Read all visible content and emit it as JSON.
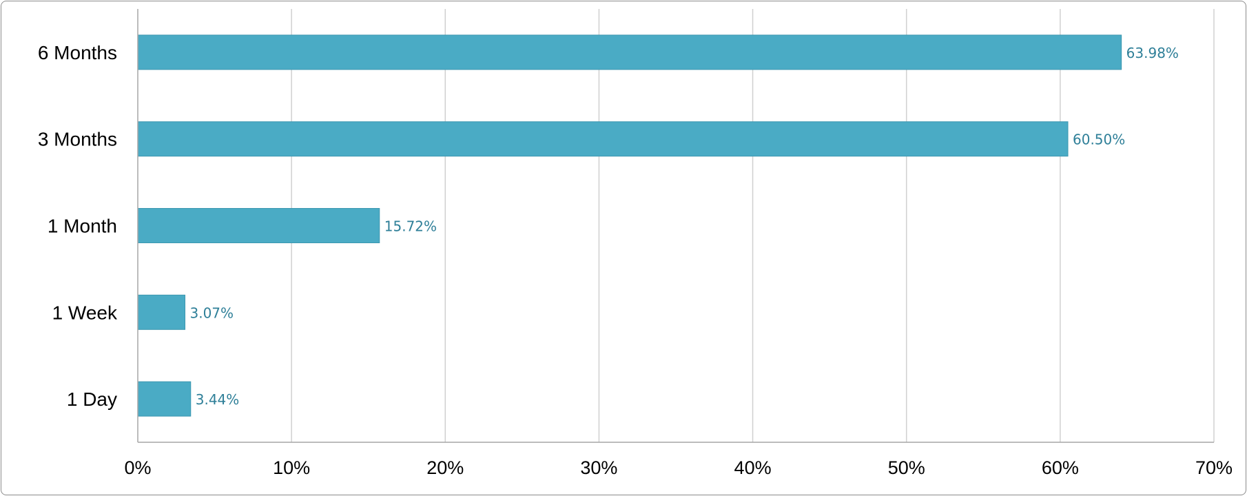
{
  "chart_data": {
    "type": "bar",
    "orientation": "horizontal",
    "title": "",
    "xlabel": "",
    "ylabel": "",
    "categories": [
      "6 Months",
      "3 Months",
      "1 Month",
      "1 Week",
      "1 Day"
    ],
    "values": [
      63.98,
      60.5,
      15.72,
      3.07,
      3.44
    ],
    "data_labels": [
      "63.98%",
      "60.50%",
      "15.72%",
      "3.07%",
      "3.44%"
    ],
    "xlim": [
      0,
      70
    ],
    "x_ticks": [
      0,
      10,
      20,
      30,
      40,
      50,
      60,
      70
    ],
    "x_tick_labels": [
      "0%",
      "10%",
      "20%",
      "30%",
      "40%",
      "50%",
      "60%",
      "70%"
    ],
    "grid": true,
    "legend": "none",
    "colors": {
      "bar": "#4aabc5",
      "bar_edge": "#3c97b0",
      "data_label": "#2e7f98",
      "grid": "#d0d0d0",
      "axis": "#a6a6a6"
    }
  }
}
